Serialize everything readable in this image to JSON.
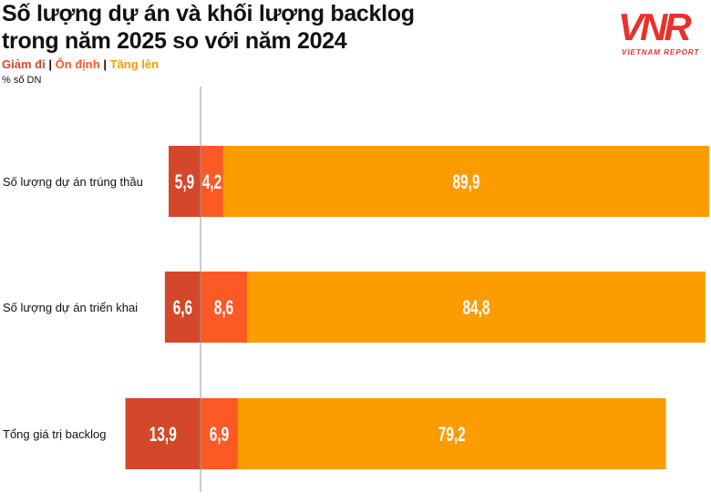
{
  "chart_data": {
    "type": "bar",
    "orientation": "horizontal",
    "stacked": "diverging",
    "title_lines": [
      "Số lượng dự án và khối lượng backlog",
      "trong năm 2025 so với năm 2024"
    ],
    "unit_label": "% số DN",
    "categories": [
      "Số lượng dự án trúng thầu",
      "Số lượng dự án triển khai",
      "Tổng giá trị backlog"
    ],
    "series": [
      {
        "name": "Giảm đi",
        "color": "#d4472b",
        "values": [
          5.9,
          6.6,
          13.9
        ],
        "labels": [
          "5,9",
          "6,6",
          "13,9"
        ]
      },
      {
        "name": "Ổn định",
        "color": "#fb5a25",
        "values": [
          4.2,
          8.6,
          6.9
        ],
        "labels": [
          "4,2",
          "8,6",
          "6,9"
        ]
      },
      {
        "name": "Tăng lên",
        "color": "#fd9c00",
        "values": [
          89.9,
          84.8,
          79.2
        ],
        "labels": [
          "89,9",
          "84,8",
          "79,2"
        ]
      }
    ],
    "legend_placement": "top-left",
    "grid": false
  },
  "logo": {
    "text": "VNR",
    "subtext": "VIETNAM REPORT",
    "color": "#e8312a"
  }
}
